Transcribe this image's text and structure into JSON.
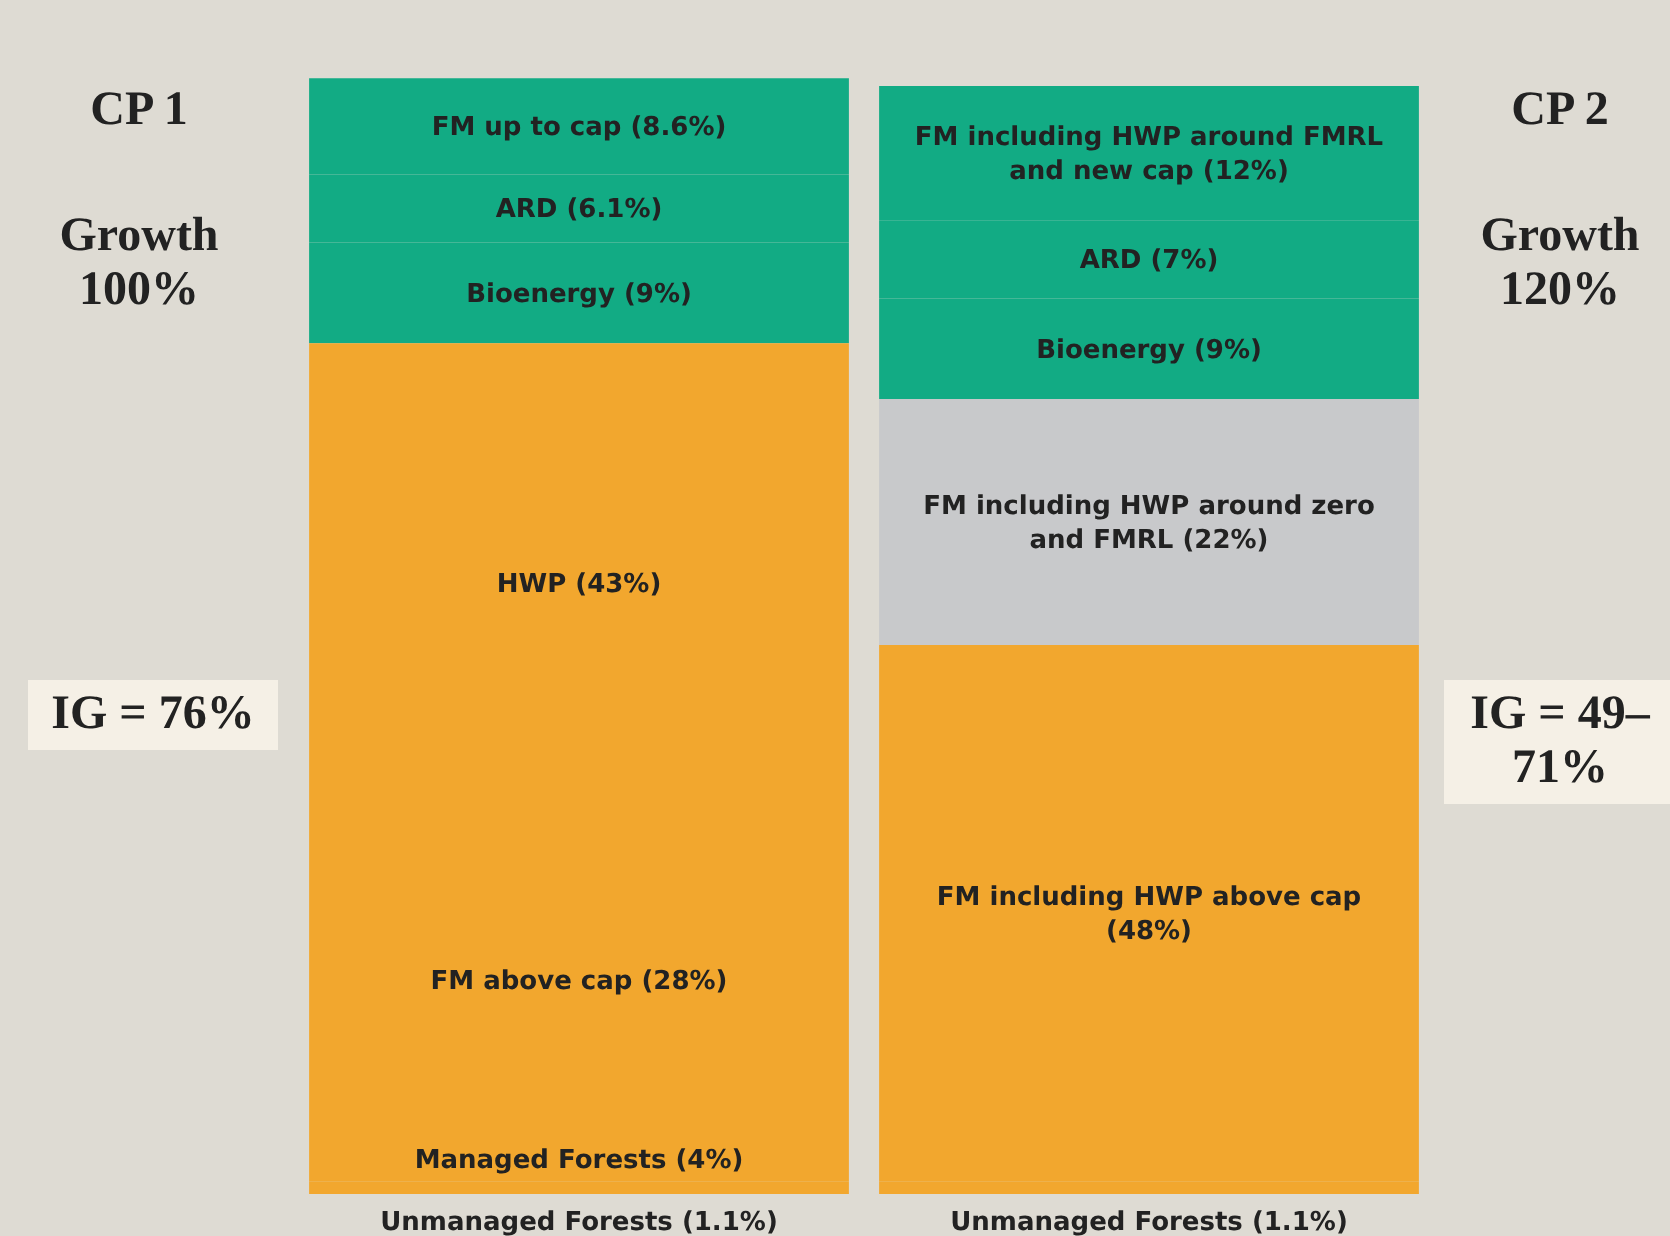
{
  "chart_data": {
    "type": "bar",
    "stacked": true,
    "categories": [
      null,
      null
    ],
    "series": [
      {
        "values": [
          1.1,
          1.1
        ],
        "colors": [
          "#f2a72e",
          "#f2a72e"
        ],
        "value_labels": [
          "Unmanaged Forests (1.1%)",
          "Unmanaged Forests (1.1%)"
        ]
      },
      {
        "values": [
          4,
          48
        ],
        "colors": [
          "#f2a72e",
          "#f2a72e"
        ],
        "value_labels": [
          "Managed Forests (4%)",
          "FM including HWP above cap (48%)"
        ]
      },
      {
        "values": [
          28,
          22
        ],
        "colors": [
          "#f2a72e",
          "#c8c9cb"
        ],
        "value_labels": [
          "FM above cap (28%)",
          "FM including HWP around zero and FMRL (22%)"
        ]
      },
      {
        "values": [
          43,
          9
        ],
        "colors": [
          "#f2a72e",
          "#12ab84"
        ],
        "value_labels": [
          "HWP (43%)",
          "Bioenergy (9%)"
        ]
      },
      {
        "values": [
          9,
          7
        ],
        "colors": [
          "#12ab84",
          "#12ab84"
        ],
        "value_labels": [
          "Bioenergy (9%)",
          "ARD (7%)"
        ]
      },
      {
        "values": [
          6.1,
          12
        ],
        "colors": [
          "#12ab84",
          "#12ab84"
        ],
        "value_labels": [
          "ARD (6.1%)",
          "FM including HWP around FMRL and new cap (12%)"
        ]
      },
      {
        "values": [
          8.6,
          null
        ],
        "colors": [
          "#12ab84",
          "#12ab84"
        ],
        "value_labels": [
          "FM up to cap (8.6%)",
          null
        ]
      }
    ],
    "annotations": [
      "CP 1",
      "Growth 100%",
      "IG = 76%",
      "CP 2",
      "Growth 120%",
      "IG = 49–71%"
    ],
    "ylim": [
      0,
      100
    ],
    "tick_labels": false,
    "legend": false
  }
}
